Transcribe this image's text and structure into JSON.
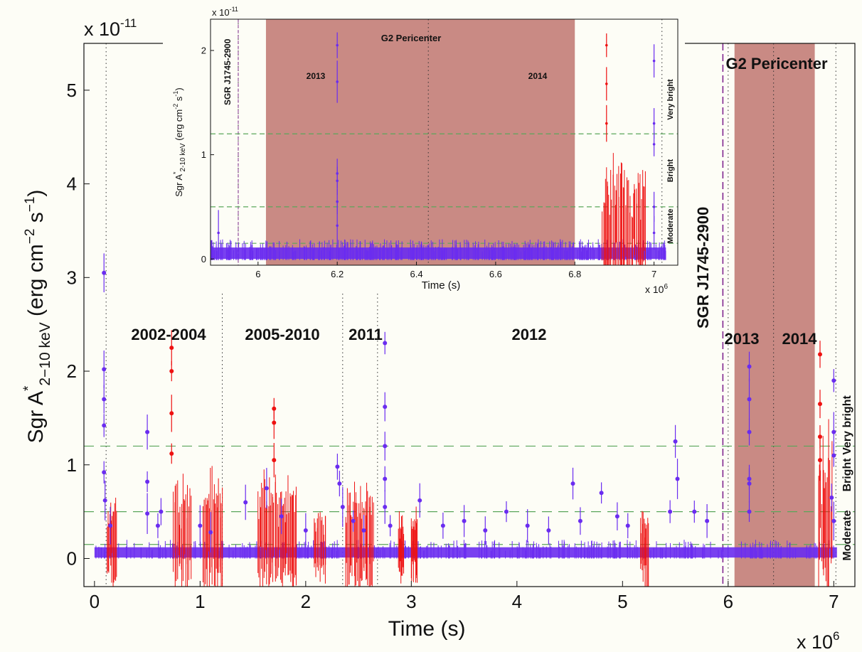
{
  "chart_data": [
    {
      "type": "scatter",
      "panel": "main",
      "xlabel": "Time (s)",
      "ylabel": "Sgr A*_{2-10 keV} (erg cm^-2 s^-1)",
      "x_multiplier": "x 10^6",
      "y_multiplier": "x 10^-11",
      "xlim": [
        -0.1,
        7.2
      ],
      "ylim": [
        -0.3,
        5.5
      ],
      "xticks": [
        0,
        1,
        2,
        3,
        4,
        5,
        6,
        7
      ],
      "yticks": [
        0,
        1,
        2,
        3,
        4,
        5
      ],
      "grid": false,
      "level_lines": [
        0.15,
        0.5,
        1.2
      ],
      "level_labels": [
        "Moderate",
        "Bright",
        "Very bright"
      ],
      "year_boundaries": [
        0.11,
        1.21,
        2.35,
        2.68,
        6.0,
        6.43,
        7.02
      ],
      "year_labels": [
        {
          "text": "2002-2004",
          "x": 0.64,
          "y": 2.4
        },
        {
          "text": "2005-2010",
          "x": 1.78,
          "y": 2.4
        },
        {
          "text": "2011",
          "x": 2.49,
          "y": 2.4
        },
        {
          "text": "2012",
          "x": 4.2,
          "y": 2.4
        },
        {
          "text": "2013",
          "x": 6.2,
          "y": 2.3
        },
        {
          "text": "2014",
          "x": 6.72,
          "y": 2.3
        }
      ],
      "magnetar": {
        "label": "SGR J1745-2900",
        "x": 5.95
      },
      "pericenter": {
        "label": "G2 Pericenter",
        "xrange": [
          6.06,
          6.82
        ]
      },
      "quiescent_level": 0.05,
      "flares_blue": [
        [
          0.09,
          3.05
        ],
        [
          0.09,
          2.02
        ],
        [
          0.09,
          1.7
        ],
        [
          0.09,
          1.42
        ],
        [
          0.09,
          0.92
        ],
        [
          0.1,
          0.62
        ],
        [
          0.15,
          0.35
        ],
        [
          0.5,
          1.35
        ],
        [
          0.5,
          0.82
        ],
        [
          0.5,
          0.48
        ],
        [
          0.63,
          0.5
        ],
        [
          0.6,
          0.35
        ],
        [
          1.0,
          0.35
        ],
        [
          1.1,
          0.28
        ],
        [
          1.43,
          0.6
        ],
        [
          1.63,
          0.75
        ],
        [
          1.77,
          0.45
        ],
        [
          2.0,
          0.3
        ],
        [
          2.3,
          0.98
        ],
        [
          2.32,
          0.8
        ],
        [
          2.35,
          0.55
        ],
        [
          2.45,
          0.4
        ],
        [
          2.55,
          0.3
        ],
        [
          2.75,
          2.3
        ],
        [
          2.75,
          1.62
        ],
        [
          2.75,
          1.2
        ],
        [
          2.75,
          0.85
        ],
        [
          2.75,
          0.55
        ],
        [
          2.8,
          0.35
        ],
        [
          3.08,
          0.62
        ],
        [
          3.3,
          0.35
        ],
        [
          3.5,
          0.4
        ],
        [
          3.7,
          0.3
        ],
        [
          3.9,
          0.5
        ],
        [
          4.1,
          0.35
        ],
        [
          4.3,
          0.3
        ],
        [
          4.53,
          0.8
        ],
        [
          4.6,
          0.4
        ],
        [
          4.8,
          0.7
        ],
        [
          4.95,
          0.45
        ],
        [
          5.05,
          0.35
        ],
        [
          5.5,
          1.25
        ],
        [
          5.52,
          0.85
        ],
        [
          5.45,
          0.5
        ],
        [
          5.68,
          0.5
        ],
        [
          5.8,
          0.4
        ],
        [
          6.2,
          2.05
        ],
        [
          6.2,
          1.7
        ],
        [
          6.2,
          1.35
        ],
        [
          6.2,
          0.85
        ],
        [
          6.2,
          0.8
        ],
        [
          6.2,
          0.5
        ],
        [
          7.0,
          1.9
        ],
        [
          7.0,
          1.35
        ],
        [
          7.0,
          1.1
        ],
        [
          6.98,
          0.65
        ],
        [
          7.0,
          0.4
        ]
      ],
      "flares_red": [
        [
          0.73,
          2.25
        ],
        [
          0.73,
          2.0
        ],
        [
          0.73,
          1.55
        ],
        [
          0.73,
          1.12
        ],
        [
          1.7,
          1.6
        ],
        [
          1.7,
          1.45
        ],
        [
          1.7,
          1.05
        ],
        [
          6.87,
          2.18
        ],
        [
          6.87,
          1.65
        ],
        [
          6.87,
          1.3
        ],
        [
          6.87,
          1.05
        ]
      ],
      "red_observations": [
        [
          0.12,
          0.22,
          0.5
        ],
        [
          0.75,
          0.92,
          0.7
        ],
        [
          1.03,
          1.22,
          0.72
        ],
        [
          1.55,
          1.92,
          0.65
        ],
        [
          2.08,
          2.2,
          0.4
        ],
        [
          2.38,
          2.65,
          0.58
        ],
        [
          2.88,
          2.93,
          0.38
        ],
        [
          3.0,
          3.06,
          0.4
        ],
        [
          5.17,
          5.25,
          0.4
        ],
        [
          6.86,
          6.99,
          1.05
        ]
      ]
    },
    {
      "type": "scatter",
      "panel": "inset",
      "xlabel": "Time (s)",
      "ylabel": "Sgr A*_{2-10 keV} (erg cm^-2 s^-1)",
      "x_multiplier": "x 10^6",
      "y_multiplier": "x 10^-11",
      "xlim": [
        5.88,
        7.06
      ],
      "ylim": [
        -0.06,
        2.3
      ],
      "xticks": [
        6,
        6.2,
        6.4,
        6.6,
        6.8,
        7
      ],
      "yticks": [
        0,
        1,
        2
      ],
      "grid": false,
      "level_lines": [
        0.15,
        0.5,
        1.2
      ],
      "level_labels": [
        "Moderate",
        "Bright",
        "Very bright"
      ],
      "year_boundaries": [
        5.95,
        6.43,
        7.02
      ],
      "year_labels": [
        {
          "text": "2013",
          "x": 6.17,
          "y": 1.75
        },
        {
          "text": "2014",
          "x": 6.77,
          "y": 1.75
        }
      ],
      "magnetar": {
        "label": "SGR J1745-2900",
        "x": 5.95
      },
      "pericenter": {
        "label": "G2 Pericenter",
        "xrange": [
          6.02,
          6.8
        ]
      },
      "quiescent_level": 0.04,
      "flares_blue": [
        [
          6.2,
          2.05
        ],
        [
          6.2,
          1.7
        ],
        [
          6.2,
          0.82
        ],
        [
          6.2,
          0.75
        ],
        [
          6.2,
          0.55
        ],
        [
          6.2,
          0.32
        ],
        [
          7.0,
          1.9
        ],
        [
          7.0,
          1.3
        ],
        [
          7.0,
          1.1
        ],
        [
          7.0,
          0.5
        ],
        [
          7.0,
          0.25
        ],
        [
          5.9,
          0.25
        ]
      ],
      "flares_red": [
        [
          6.88,
          2.05
        ],
        [
          6.88,
          1.68
        ],
        [
          6.88,
          1.3
        ]
      ],
      "red_observations": [
        [
          6.87,
          6.98,
          0.7
        ]
      ]
    }
  ],
  "labels": {
    "main_xlabel": "Time (s)",
    "main_xmult": "x 10",
    "main_xmult_exp": "6",
    "main_ymult": "x 10",
    "main_ymult_exp": "-11",
    "ylabel_a": "Sgr A",
    "ylabel_star": "*",
    "ylabel_sub": "2−10 keV",
    "ylabel_b": " (erg cm",
    "ylabel_exp1": "−2",
    "ylabel_c": " s",
    "ylabel_exp2": "−1",
    "ylabel_d": ")",
    "g2": "G2 Pericenter",
    "sgr": "SGR J1745-2900",
    "very_bright": "Very bright",
    "bright": "Bright",
    "moderate": "Moderate",
    "y2002": "2002-2004",
    "y2005": "2005-2010",
    "y2011": "2011",
    "y2012": "2012",
    "y2013": "2013",
    "y2014": "2014",
    "inset_xlabel": "Time (s)",
    "inset_xmult": "x 10",
    "inset_xmult_exp": "6",
    "inset_ymult": "x 10",
    "inset_ymult_exp": "-11",
    "inset_ylabel_a": "Sgr A",
    "inset_ylabel_star": "*",
    "inset_ylabel_sub": "2-10 keV",
    "inset_ylabel_b": " (erg cm",
    "inset_ylabel_exp1": "-2",
    "inset_ylabel_c": " s",
    "inset_ylabel_exp2": "-1",
    "inset_ylabel_d": ")"
  },
  "colors": {
    "blue": "#6a2cf0",
    "red": "#ee1111",
    "green_dash": "#5aa65a",
    "pericenter_fill": "#c98a84",
    "purple": "#7a1a8a",
    "label_red": "#ee1111",
    "background": "#fdfdf6"
  }
}
